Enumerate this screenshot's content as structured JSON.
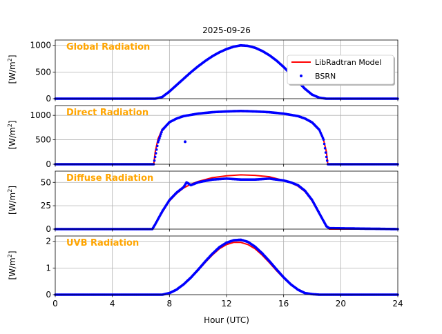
{
  "chart_data": {
    "type": "line",
    "title": "2025-09-26",
    "xlabel": "Hour (UTC)",
    "xlim": [
      0,
      24
    ],
    "xticks": [
      0,
      4,
      8,
      12,
      16,
      20,
      24
    ],
    "grid": true,
    "legend": {
      "placement": "upper-right of first panel",
      "entries": [
        {
          "name": "LibRadtran Model",
          "color": "#ff0000",
          "style": "line"
        },
        {
          "name": "BSRN",
          "color": "#0000ff",
          "style": "dots"
        }
      ]
    },
    "panels": [
      {
        "label": "Global Radiation",
        "ylabel_main": "[W/m",
        "ylabel_sup": "2",
        "ylabel_end": "]",
        "ylim": [
          0,
          1100
        ],
        "yticks": [
          0,
          500,
          1000
        ],
        "sunrise": 7.0,
        "sunset": 19.0,
        "model": {
          "x": [
            7.0,
            7.5,
            8.0,
            8.5,
            9.0,
            9.5,
            10.0,
            10.5,
            11.0,
            11.5,
            12.0,
            12.5,
            13.0,
            13.5,
            14.0,
            14.5,
            15.0,
            15.5,
            16.0,
            16.5,
            17.0,
            17.5,
            18.0,
            18.5,
            19.0
          ],
          "y": [
            0,
            30,
            130,
            250,
            370,
            490,
            600,
            700,
            790,
            865,
            925,
            970,
            990,
            985,
            950,
            890,
            810,
            710,
            590,
            455,
            315,
            180,
            70,
            15,
            0
          ]
        },
        "bsrn": {
          "x": [
            7.0,
            7.5,
            8.0,
            8.5,
            9.0,
            9.5,
            10.0,
            10.5,
            11.0,
            11.5,
            12.0,
            12.5,
            13.0,
            13.5,
            14.0,
            14.5,
            15.0,
            15.5,
            16.0,
            16.5,
            17.0,
            17.5,
            18.0,
            18.5,
            19.0
          ],
          "y": [
            0,
            32,
            135,
            255,
            375,
            495,
            605,
            705,
            795,
            870,
            930,
            975,
            1000,
            990,
            955,
            895,
            815,
            715,
            595,
            460,
            320,
            185,
            75,
            18,
            0
          ]
        }
      },
      {
        "label": "Direct Radiation",
        "ylabel_main": "[W/m",
        "ylabel_sup": "2",
        "ylabel_end": "]",
        "ylim": [
          0,
          1200
        ],
        "yticks": [
          0,
          500,
          1000
        ],
        "sunrise": 6.9,
        "sunset": 19.1,
        "model": {
          "x": [
            6.9,
            7.0,
            7.2,
            7.5,
            8.0,
            8.5,
            9.0,
            10.0,
            11.0,
            12.0,
            13.0,
            14.0,
            15.0,
            16.0,
            17.0,
            17.5,
            18.0,
            18.5,
            18.8,
            19.0,
            19.1
          ],
          "y": [
            0,
            250,
            520,
            720,
            860,
            930,
            980,
            1030,
            1060,
            1075,
            1080,
            1075,
            1060,
            1030,
            980,
            930,
            850,
            700,
            500,
            250,
            0
          ]
        },
        "bsrn": {
          "x": [
            6.9,
            7.0,
            7.2,
            7.5,
            8.0,
            8.5,
            9.0,
            10.0,
            11.0,
            12.0,
            13.0,
            14.0,
            15.0,
            16.0,
            17.0,
            17.5,
            18.0,
            18.5,
            18.8,
            19.0,
            19.1
          ],
          "y": [
            0,
            150,
            450,
            700,
            860,
            935,
            985,
            1035,
            1065,
            1080,
            1090,
            1080,
            1065,
            1035,
            985,
            935,
            855,
            705,
            505,
            150,
            0
          ]
        },
        "outliers": [
          {
            "x": 9.1,
            "y": 460
          }
        ]
      },
      {
        "label": "Diffuse Radiation",
        "ylabel_main": "[W/m",
        "ylabel_sup": "2",
        "ylabel_end": "]",
        "ylim": [
          0,
          62
        ],
        "yticks": [
          0,
          25,
          50
        ],
        "sunrise": 6.8,
        "sunset": 19.2,
        "model": {
          "x": [
            6.8,
            7.0,
            7.5,
            8.0,
            8.5,
            9.0,
            9.5,
            10.0,
            11.0,
            12.0,
            13.0,
            14.0,
            15.0,
            16.0,
            16.5,
            17.0,
            17.5,
            18.0,
            18.5,
            19.0,
            19.2
          ],
          "y": [
            0,
            5,
            18,
            30,
            38,
            44,
            48,
            51,
            55,
            57,
            58,
            57.5,
            56,
            52,
            49.5,
            46,
            40,
            30,
            16,
            4,
            0
          ]
        },
        "bsrn": {
          "x": [
            6.8,
            7.0,
            7.5,
            8.0,
            8.5,
            9.0,
            9.2,
            9.5,
            10.0,
            11.0,
            12.0,
            13.0,
            14.0,
            15.0,
            16.0,
            16.5,
            17.0,
            17.5,
            18.0,
            18.5,
            19.0,
            19.2
          ],
          "y": [
            0,
            5,
            19,
            31,
            39,
            45,
            50,
            47,
            50,
            53,
            54,
            53,
            53,
            54,
            52,
            50,
            47,
            41,
            31,
            17,
            3,
            1
          ]
        }
      },
      {
        "label": "UVB Radiation",
        "ylabel_main": "[W/m",
        "ylabel_sup": "2",
        "ylabel_end": "]",
        "ylim": [
          0,
          2.2
        ],
        "yticks": [
          0,
          1,
          2
        ],
        "sunrise": 7.5,
        "sunset": 18.5,
        "model": {
          "x": [
            7.5,
            8.0,
            8.5,
            9.0,
            9.5,
            10.0,
            10.5,
            11.0,
            11.5,
            12.0,
            12.5,
            13.0,
            13.5,
            14.0,
            14.5,
            15.0,
            15.5,
            16.0,
            16.5,
            17.0,
            17.5,
            18.0,
            18.5
          ],
          "y": [
            0,
            0.06,
            0.18,
            0.37,
            0.62,
            0.9,
            1.2,
            1.48,
            1.72,
            1.88,
            1.96,
            1.96,
            1.88,
            1.72,
            1.48,
            1.2,
            0.9,
            0.62,
            0.37,
            0.18,
            0.06,
            0.02,
            0
          ]
        },
        "bsrn": {
          "x": [
            7.5,
            8.0,
            8.5,
            9.0,
            9.5,
            10.0,
            10.5,
            11.0,
            11.5,
            12.0,
            12.5,
            13.0,
            13.5,
            14.0,
            14.5,
            15.0,
            15.5,
            16.0,
            16.5,
            17.0,
            17.5,
            18.0,
            18.5
          ],
          "y": [
            0,
            0.06,
            0.19,
            0.39,
            0.64,
            0.93,
            1.24,
            1.53,
            1.78,
            1.95,
            2.04,
            2.06,
            1.98,
            1.8,
            1.55,
            1.26,
            0.95,
            0.65,
            0.39,
            0.19,
            0.06,
            0.02,
            0
          ]
        }
      }
    ]
  }
}
